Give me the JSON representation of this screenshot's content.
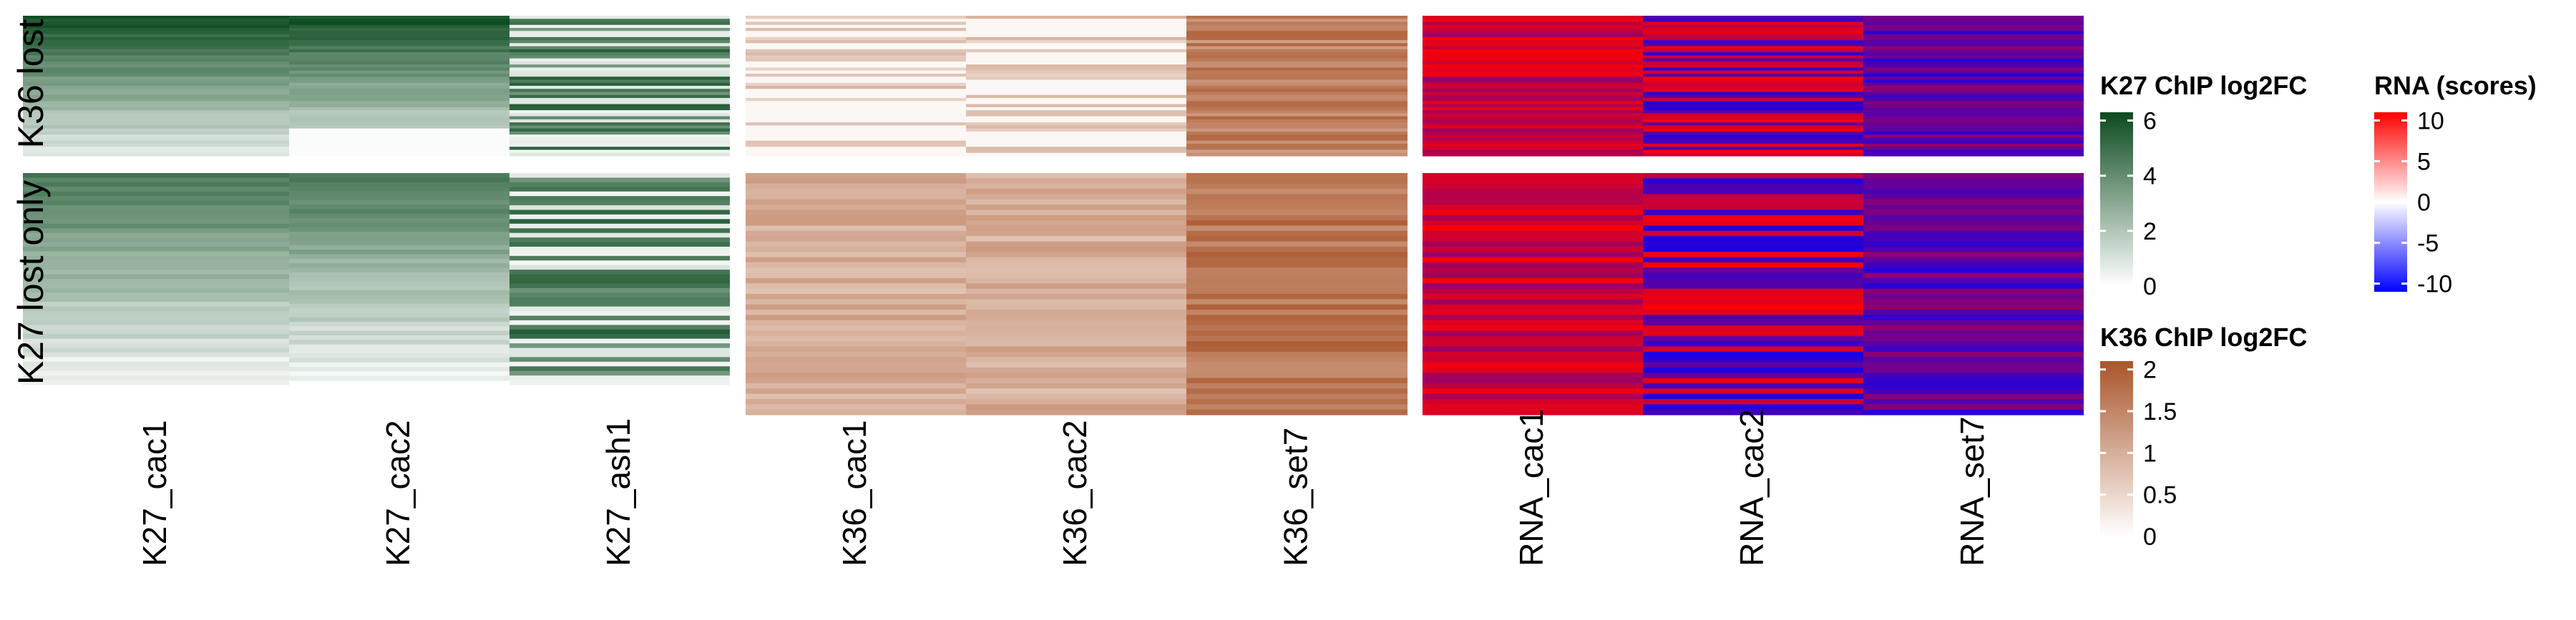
{
  "chart_data": {
    "type": "heatmap",
    "row_groups": [
      "K36 lost",
      "K27 lost only"
    ],
    "panels": [
      {
        "name": "K27 ChIP",
        "columns": [
          "K27_cac1",
          "K27_cac2",
          "K27_ash1"
        ],
        "scale": "k27"
      },
      {
        "name": "K36 ChIP",
        "columns": [
          "K36_cac1",
          "K36_cac2",
          "K36_set7"
        ],
        "scale": "k36"
      },
      {
        "name": "RNA",
        "columns": [
          "RNA_cac1",
          "RNA_cac2",
          "RNA_set7"
        ],
        "scale": "rna"
      }
    ],
    "legends": {
      "k27": {
        "title": "K27 ChIP log2FC",
        "ticks": [
          "6",
          "4",
          "2",
          "0"
        ],
        "tick_values": [
          6,
          4,
          2,
          0
        ],
        "range": [
          0,
          6.3
        ],
        "low_color": "#ffffff",
        "high_color": "#0b4a1f"
      },
      "k36": {
        "title": "K36 ChIP log2FC",
        "ticks": [
          "2",
          "1.5",
          "1",
          "0.5",
          "0"
        ],
        "tick_values": [
          2,
          1.5,
          1,
          0.5,
          0
        ],
        "range": [
          0,
          2.1
        ],
        "low_color": "#ffffff",
        "high_color": "#a9552a"
      },
      "rna": {
        "title": "RNA (scores)",
        "ticks": [
          "10",
          "5",
          "0",
          "-5",
          "-10"
        ],
        "tick_values": [
          10,
          5,
          0,
          -5,
          -10
        ],
        "range": [
          -11,
          11
        ],
        "low_color": "#0000ff",
        "mid_color": "#ffffff",
        "high_color": "#ff0000"
      }
    },
    "xlabel": "",
    "ylabel": ""
  }
}
